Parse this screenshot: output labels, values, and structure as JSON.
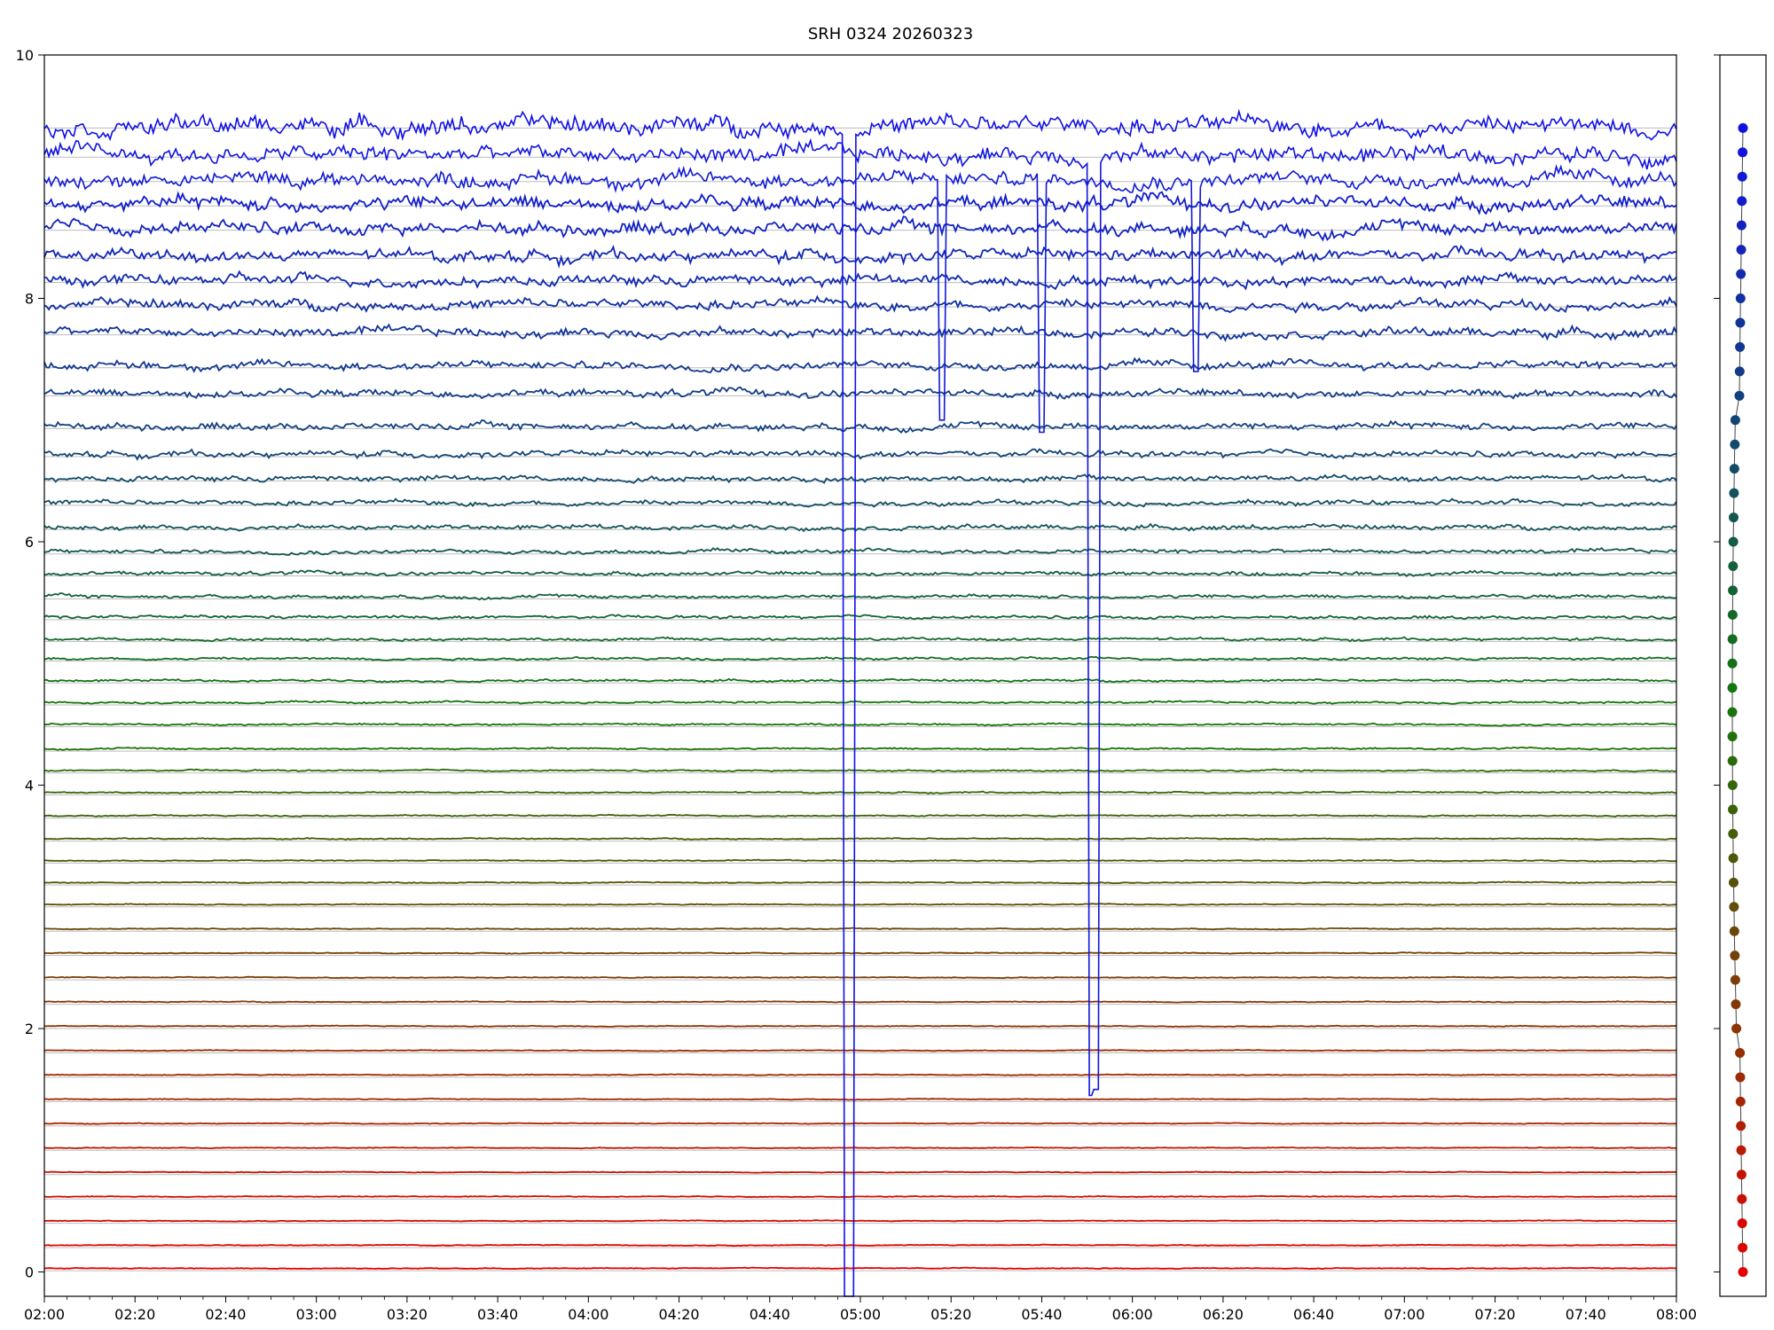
{
  "chart_data": {
    "type": "line",
    "title": "SRH 0324 20260323",
    "xlabel": "",
    "ylabel": "",
    "x_tick_labels": [
      "02:00",
      "02:20",
      "02:40",
      "03:00",
      "03:20",
      "03:40",
      "04:00",
      "04:20",
      "04:40",
      "05:00",
      "05:20",
      "05:40",
      "06:00",
      "06:20",
      "06:40",
      "07:00",
      "07:20",
      "07:40",
      "08:00"
    ],
    "y_tick_labels": [
      "0",
      "2",
      "4",
      "6",
      "8",
      "10"
    ],
    "xlim": [
      0,
      360
    ],
    "ylim": [
      -0.2,
      10
    ],
    "grid": "horizontal gray lines at each trace baseline",
    "legend": "none",
    "series_count": 48,
    "series_spacing": 0.2,
    "color_gradient": [
      "#e60000",
      "#1010e6"
    ],
    "series_baselines": [
      0.03,
      0.22,
      0.42,
      0.62,
      0.82,
      1.02,
      1.22,
      1.42,
      1.62,
      1.82,
      2.02,
      2.22,
      2.42,
      2.62,
      2.82,
      3.02,
      3.2,
      3.38,
      3.56,
      3.75,
      3.94,
      4.12,
      4.3,
      4.5,
      4.68,
      4.86,
      5.04,
      5.2,
      5.38,
      5.55,
      5.74,
      5.92,
      6.12,
      6.32,
      6.52,
      6.72,
      6.95,
      7.22,
      7.45,
      7.72,
      7.95,
      8.15,
      8.35,
      8.58,
      8.78,
      8.98,
      9.18,
      9.42
    ],
    "annotations": [
      {
        "series": 47,
        "type": "spike",
        "x": 177,
        "to": -0.2
      },
      {
        "series": 47,
        "type": "spike",
        "x": 178,
        "to": -0.2
      },
      {
        "series": 46,
        "type": "spike",
        "x": 231,
        "to": 1.45
      },
      {
        "series": 46,
        "type": "spike",
        "x": 232,
        "to": 1.5
      },
      {
        "series": 45,
        "type": "spike",
        "x": 220,
        "to": 6.9
      },
      {
        "series": 45,
        "type": "spike",
        "x": 198,
        "to": 7.0
      },
      {
        "series": 45,
        "type": "spike",
        "x": 254,
        "to": 7.4
      }
    ],
    "sidebar_dots": {
      "count": 48,
      "color_gradient": [
        "#e60000",
        "#1010e6"
      ]
    }
  }
}
